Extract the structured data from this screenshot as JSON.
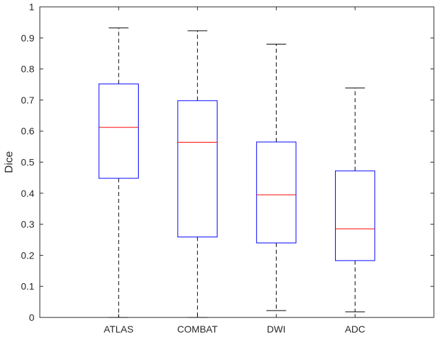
{
  "chart_data": {
    "type": "box",
    "title": "",
    "xlabel": "",
    "ylabel": "Dice",
    "ylim": [
      0,
      1
    ],
    "yticks": [
      0,
      0.1,
      0.2,
      0.3,
      0.4,
      0.5,
      0.6,
      0.7,
      0.8,
      0.9,
      1
    ],
    "ytick_labels": [
      "0",
      "0.1",
      "0.2",
      "0.3",
      "0.4",
      "0.5",
      "0.6",
      "0.7",
      "0.8",
      "0.9",
      "1"
    ],
    "categories": [
      "ATLAS",
      "COMBAT",
      "DWI",
      "ADC"
    ],
    "boxes": [
      {
        "category": "ATLAS",
        "whisker_low": 0.0,
        "q1": 0.448,
        "median": 0.612,
        "q3": 0.752,
        "whisker_high": 0.932
      },
      {
        "category": "COMBAT",
        "whisker_low": 0.0,
        "q1": 0.259,
        "median": 0.564,
        "q3": 0.698,
        "whisker_high": 0.923
      },
      {
        "category": "DWI",
        "whisker_low": 0.022,
        "q1": 0.24,
        "median": 0.395,
        "q3": 0.565,
        "whisker_high": 0.88
      },
      {
        "category": "ADC",
        "whisker_low": 0.018,
        "q1": 0.183,
        "median": 0.285,
        "q3": 0.472,
        "whisker_high": 0.739
      }
    ],
    "colors": {
      "box": "#0000ff",
      "median": "#ff0000",
      "whisker": "#000000",
      "axis": "#262626"
    },
    "grid": false,
    "legend": "none"
  }
}
